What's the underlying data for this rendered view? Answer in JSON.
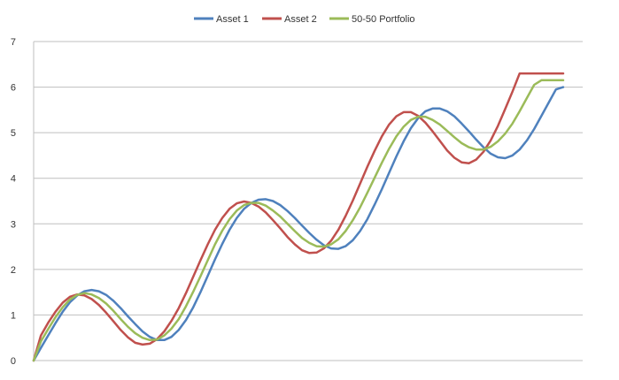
{
  "chart_data": {
    "type": "line",
    "title": "",
    "xlabel": "",
    "ylabel": "",
    "ylim": [
      0,
      7
    ],
    "yticks": [
      0,
      1,
      2,
      3,
      4,
      5,
      6,
      7
    ],
    "grid": "horizontal",
    "legend_position": "top",
    "x": [
      0,
      0.5,
      1,
      1.5,
      2,
      2.5,
      3,
      3.5,
      4,
      4.5,
      5,
      5.5,
      6,
      6.5,
      7,
      7.5,
      8,
      8.5,
      9,
      9.5,
      10,
      10.5,
      11,
      11.5,
      12,
      12.5,
      13,
      13.5,
      14,
      14.5,
      15,
      15.5,
      16,
      16.5,
      17,
      17.5,
      18,
      18.5,
      19,
      19.5,
      20,
      20.5,
      21,
      21.5,
      22,
      22.5,
      23,
      23.5,
      24,
      24.5,
      25,
      25.5,
      26,
      26.5,
      27,
      27.5,
      28,
      28.5,
      29,
      29.5,
      30,
      30.5,
      31,
      31.5,
      32,
      32.5,
      33,
      33.5,
      34,
      34.5,
      35,
      35.5,
      36,
      36.5,
      37,
      37.5,
      38,
      38.5,
      39,
      39.5,
      40
    ],
    "series": [
      {
        "name": "Asset 1",
        "color": "#4F81BD",
        "values": [
          0.0,
          0.28,
          0.55,
          0.82,
          1.07,
          1.28,
          1.43,
          1.52,
          1.55,
          1.52,
          1.44,
          1.31,
          1.15,
          0.97,
          0.8,
          0.64,
          0.52,
          0.45,
          0.45,
          0.52,
          0.67,
          0.89,
          1.17,
          1.5,
          1.86,
          2.22,
          2.56,
          2.87,
          3.13,
          3.33,
          3.46,
          3.53,
          3.54,
          3.5,
          3.41,
          3.28,
          3.13,
          2.96,
          2.8,
          2.65,
          2.53,
          2.46,
          2.45,
          2.51,
          2.64,
          2.84,
          3.1,
          3.42,
          3.76,
          4.12,
          4.48,
          4.81,
          5.1,
          5.32,
          5.47,
          5.53,
          5.53,
          5.47,
          5.36,
          5.2,
          5.03,
          4.85,
          4.68,
          4.54,
          4.46,
          4.44,
          4.5,
          4.63,
          4.83,
          5.08,
          5.37,
          5.66,
          5.95,
          6.0,
          6.0,
          6.0,
          6.0,
          6.0,
          6.0,
          6.0,
          6.0
        ]
      },
      {
        "name": "Asset 2",
        "color": "#C0504D",
        "values": [
          0.0,
          0.55,
          0.83,
          1.07,
          1.27,
          1.4,
          1.45,
          1.43,
          1.35,
          1.22,
          1.05,
          0.86,
          0.67,
          0.51,
          0.39,
          0.35,
          0.37,
          0.47,
          0.64,
          0.87,
          1.15,
          1.48,
          1.84,
          2.2,
          2.55,
          2.87,
          3.13,
          3.33,
          3.45,
          3.49,
          3.46,
          3.38,
          3.25,
          3.08,
          2.9,
          2.71,
          2.55,
          2.42,
          2.36,
          2.37,
          2.46,
          2.63,
          2.87,
          3.17,
          3.51,
          3.88,
          4.25,
          4.6,
          4.92,
          5.18,
          5.36,
          5.45,
          5.45,
          5.37,
          5.22,
          5.03,
          4.82,
          4.61,
          4.45,
          4.35,
          4.33,
          4.41,
          4.58,
          4.83,
          5.15,
          5.52,
          5.9,
          6.3,
          6.3,
          6.3,
          6.3,
          6.3,
          6.3,
          6.3,
          6.3,
          6.3,
          6.3,
          6.3,
          6.3,
          6.3,
          6.3
        ]
      },
      {
        "name": "50-50 Portfolio",
        "color": "#9BBB59",
        "values": [
          0.0,
          0.42,
          0.69,
          0.95,
          1.17,
          1.34,
          1.44,
          1.48,
          1.45,
          1.37,
          1.25,
          1.09,
          0.91,
          0.74,
          0.6,
          0.5,
          0.45,
          0.46,
          0.55,
          0.7,
          0.91,
          1.19,
          1.51,
          1.85,
          2.2,
          2.55,
          2.85,
          3.1,
          3.29,
          3.41,
          3.46,
          3.46,
          3.4,
          3.29,
          3.16,
          3.0,
          2.84,
          2.69,
          2.58,
          2.51,
          2.5,
          2.55,
          2.66,
          2.84,
          3.08,
          3.36,
          3.68,
          4.01,
          4.34,
          4.65,
          4.92,
          5.13,
          5.28,
          5.35,
          5.35,
          5.28,
          5.18,
          5.04,
          4.9,
          4.77,
          4.68,
          4.63,
          4.63,
          4.69,
          4.81,
          4.98,
          5.2,
          5.47,
          5.76,
          6.05,
          6.15,
          6.15,
          6.15,
          6.15,
          6.15,
          6.15,
          6.15,
          6.15,
          6.15,
          6.15,
          6.15
        ]
      }
    ]
  }
}
